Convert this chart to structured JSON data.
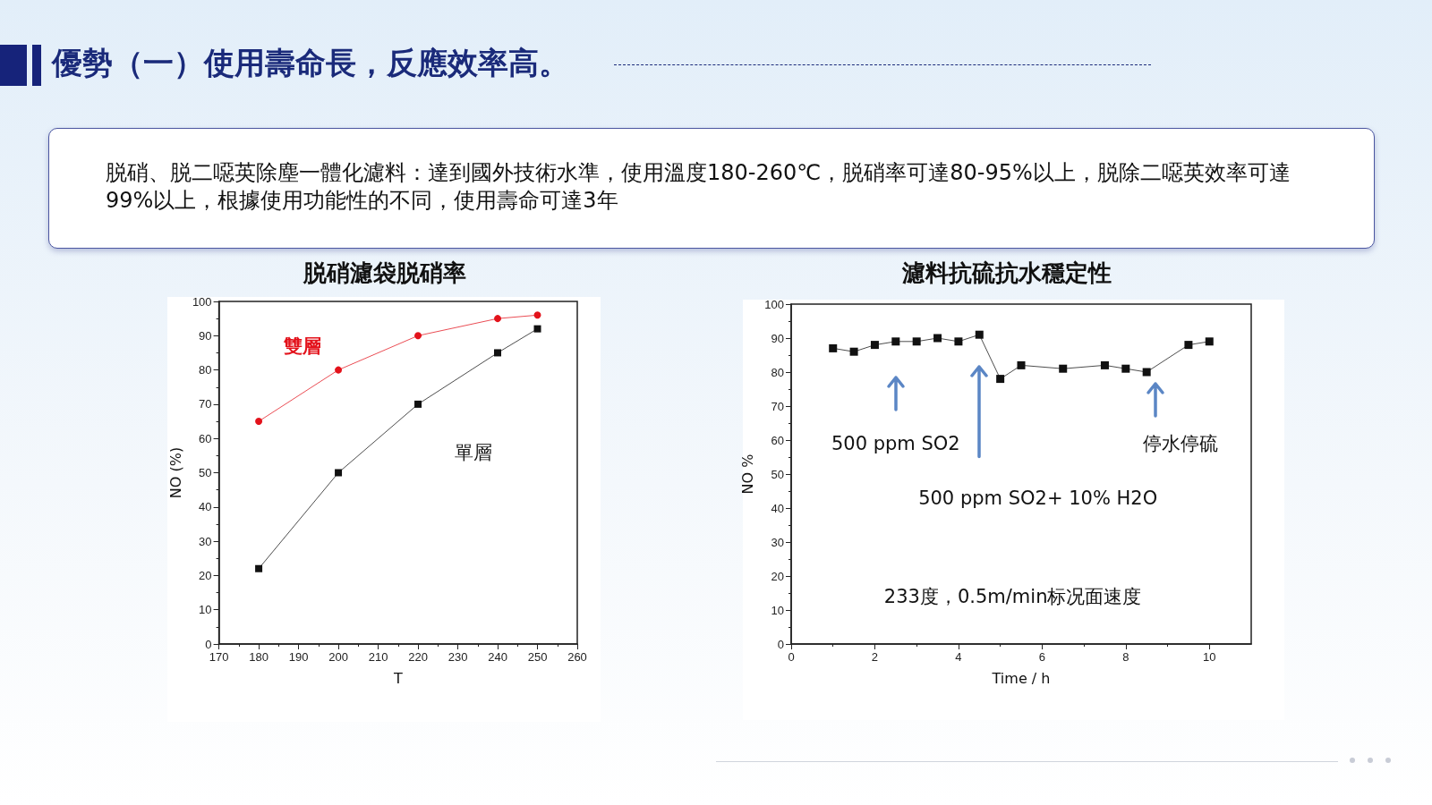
{
  "chart_data": [
    {
      "type": "other",
      "title": "優勢（一）使用壽命長，反應效率高。",
      "annotations": [
        "脱硝、脱二噁英除塵一體化濾料：達到國外技術水準，使用溫度180-260℃，脱硝率可達80-95%以上，脱除二噁英效率可達99%以上，根據使用功能性的不同，使用壽命可達3年"
      ]
    },
    {
      "type": "line",
      "title": "脱硝濾袋脱硝率",
      "xlabel": "T",
      "ylabel": "NO (%)",
      "series": [
        {
          "name": "雙層",
          "color": "#e3121b",
          "marker": "circle",
          "x": [
            180,
            200,
            220,
            240,
            250
          ],
          "values": [
            65,
            80,
            90,
            95,
            96
          ]
        },
        {
          "name": "單層",
          "color": "#111111",
          "marker": "square",
          "x": [
            180,
            200,
            220,
            240,
            250
          ],
          "values": [
            22,
            50,
            70,
            85,
            92
          ]
        }
      ],
      "xlim": [
        170,
        260
      ],
      "xticks": [
        170,
        180,
        190,
        200,
        210,
        220,
        230,
        240,
        250,
        260
      ],
      "ylim": [
        0,
        100
      ],
      "yticks": [
        0,
        10,
        20,
        30,
        40,
        50,
        60,
        70,
        80,
        90,
        100
      ],
      "grid": false,
      "legend": false
    },
    {
      "type": "line",
      "title": "濾料抗硫抗水穩定性",
      "xlabel": "Time / h",
      "ylabel": "NO %",
      "series": [
        {
          "color": "#111111",
          "x": [
            1,
            1.5,
            2,
            2.5,
            3,
            3.5,
            4,
            4.5,
            5,
            5.5,
            6.5,
            7.5,
            8,
            8.5,
            9.5,
            10
          ],
          "values": [
            87,
            86,
            88,
            89,
            89,
            90,
            89,
            91,
            78,
            82,
            81,
            82,
            81,
            80,
            88,
            89
          ]
        }
      ],
      "marker": "square",
      "xlim": [
        0,
        11
      ],
      "xticks": [
        0,
        2,
        4,
        6,
        8,
        10
      ],
      "ylim": [
        0,
        100
      ],
      "yticks": [
        0,
        10,
        20,
        30,
        40,
        50,
        60,
        70,
        80,
        90,
        100
      ],
      "grid": false,
      "legend": false,
      "annotations": [
        "500 ppm SO2",
        "500 ppm SO2+ 10% H2O",
        "停水停硫",
        "233度，0.5m/min标况面速度"
      ]
    }
  ]
}
